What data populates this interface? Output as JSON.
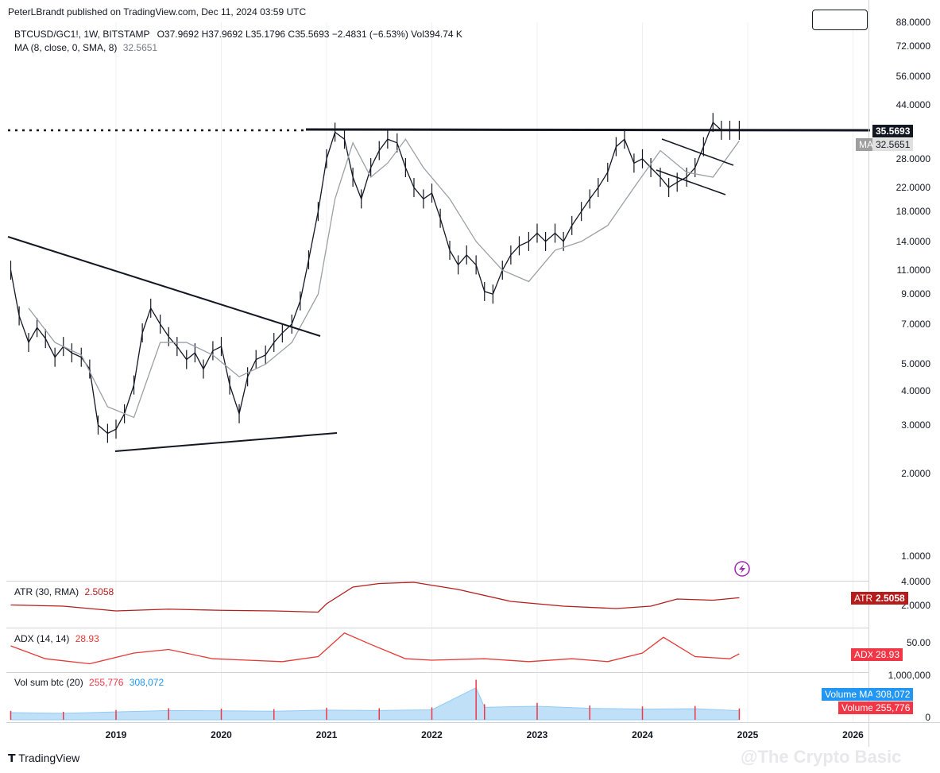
{
  "header": {
    "publisher": "PeterLBrandt published on TradingView.com, Dec 11, 2024 03:59 UTC",
    "symbol_line": {
      "symbol": "BTCUSD/GC1!, 1W, BITSTAMP",
      "ohlc": "O37.9692  H37.9692  L35.1796  C35.5693  −2.4831 (−6.53%)  Vol394.74 K"
    },
    "ma_line": {
      "label": "MA (8, close, 0, SMA, 8)",
      "value": "32.5651"
    }
  },
  "footer": {
    "brand": "TradingView",
    "watermark": "@The Crypto Basic"
  },
  "colors": {
    "candle": "#131722",
    "ma": "#9aa0a6",
    "atr": "#b71c1c",
    "adx": "#e53935",
    "vol_ma": "#2196f3",
    "vol": "#f23645"
  },
  "chart_data": [
    {
      "type": "line",
      "title": "BTCUSD/GC1!, 1W, BITSTAMP",
      "scale": "log",
      "y_ticks": [
        "88.0000",
        "72.0000",
        "56.0000",
        "44.0000",
        "28.0000",
        "22.0000",
        "18.0000",
        "14.0000",
        "11.0000",
        "9.0000",
        "7.0000",
        "5.0000",
        "4.0000",
        "3.0000",
        "2.0000",
        "1.0000"
      ],
      "x_ticks": [
        "2019",
        "2020",
        "2021",
        "2022",
        "2023",
        "2024",
        "2025",
        "2026"
      ],
      "ylim": [
        0.9,
        95
      ],
      "series": [
        {
          "name": "BTCUSD/GC1!",
          "x": [
            2018.0,
            2018.08,
            2018.17,
            2018.25,
            2018.33,
            2018.42,
            2018.5,
            2018.58,
            2018.67,
            2018.75,
            2018.83,
            2018.92,
            2019.0,
            2019.08,
            2019.17,
            2019.25,
            2019.33,
            2019.42,
            2019.5,
            2019.58,
            2019.67,
            2019.75,
            2019.83,
            2019.92,
            2020.0,
            2020.08,
            2020.17,
            2020.25,
            2020.33,
            2020.42,
            2020.5,
            2020.58,
            2020.67,
            2020.75,
            2020.83,
            2020.92,
            2021.0,
            2021.08,
            2021.17,
            2021.25,
            2021.33,
            2021.42,
            2021.5,
            2021.58,
            2021.67,
            2021.75,
            2021.83,
            2021.92,
            2022.0,
            2022.08,
            2022.17,
            2022.25,
            2022.33,
            2022.42,
            2022.5,
            2022.58,
            2022.67,
            2022.75,
            2022.83,
            2022.92,
            2023.0,
            2023.08,
            2023.17,
            2023.25,
            2023.33,
            2023.42,
            2023.5,
            2023.58,
            2023.67,
            2023.75,
            2023.83,
            2023.92,
            2024.0,
            2024.08,
            2024.17,
            2024.25,
            2024.33,
            2024.42,
            2024.5,
            2024.58,
            2024.67,
            2024.75,
            2024.83,
            2024.92
          ],
          "y": [
            11.0,
            7.5,
            6.0,
            6.8,
            6.2,
            5.3,
            5.8,
            5.5,
            5.3,
            4.8,
            3.0,
            2.8,
            2.9,
            3.3,
            4.2,
            6.5,
            8.0,
            7.0,
            6.3,
            5.8,
            5.2,
            5.5,
            4.8,
            5.6,
            5.8,
            4.2,
            3.3,
            4.5,
            5.2,
            5.4,
            6.0,
            6.5,
            7.0,
            8.5,
            12.0,
            18.0,
            28.0,
            35.0,
            33.0,
            24.0,
            20.0,
            26.0,
            30.0,
            33.0,
            32.0,
            26.0,
            22.0,
            20.0,
            21.0,
            17.0,
            13.0,
            11.5,
            12.5,
            11.5,
            9.2,
            9.0,
            11.0,
            12.5,
            13.5,
            14.0,
            15.0,
            14.0,
            15.0,
            14.0,
            16.0,
            18.0,
            20.0,
            22.0,
            25.0,
            31.0,
            33.0,
            27.0,
            28.0,
            26.0,
            24.0,
            22.0,
            23.0,
            24.0,
            26.0,
            31.0,
            37.97,
            35.57,
            35.57,
            35.57
          ]
        },
        {
          "name": "MA",
          "x": [
            2018.17,
            2018.42,
            2018.67,
            2018.92,
            2019.17,
            2019.42,
            2019.67,
            2019.92,
            2020.17,
            2020.42,
            2020.67,
            2020.92,
            2021.08,
            2021.25,
            2021.42,
            2021.58,
            2021.75,
            2021.92,
            2022.17,
            2022.42,
            2022.67,
            2022.92,
            2023.17,
            2023.42,
            2023.67,
            2023.92,
            2024.17,
            2024.42,
            2024.67,
            2024.92
          ],
          "y": [
            8.0,
            6.0,
            5.4,
            3.5,
            3.2,
            6.0,
            6.0,
            5.4,
            4.5,
            5.0,
            6.0,
            9.0,
            20.0,
            32.0,
            24.0,
            27.0,
            33.0,
            26.0,
            20.0,
            14.0,
            11.0,
            10.0,
            13.0,
            14.0,
            16.0,
            22.0,
            30.0,
            25.0,
            24.0,
            32.5651
          ]
        }
      ],
      "labels": {
        "last_price": "35.5693",
        "ma_tag": "MA",
        "ma_value": "32.5651"
      }
    },
    {
      "type": "line",
      "title": "ATR (30, RMA)",
      "y_ticks": [
        "4.0000",
        "2.0000"
      ],
      "series": [
        {
          "name": "ATR",
          "x": [
            2018.0,
            2018.5,
            2019.0,
            2019.5,
            2020.0,
            2020.5,
            2020.92,
            2021.0,
            2021.25,
            2021.5,
            2021.83,
            2022.25,
            2022.75,
            2023.25,
            2023.75,
            2024.08,
            2024.33,
            2024.67,
            2024.92
          ],
          "y": [
            1.9,
            1.8,
            1.4,
            1.55,
            1.45,
            1.4,
            1.3,
            2.0,
            3.4,
            3.7,
            3.8,
            3.2,
            2.2,
            1.8,
            1.6,
            1.8,
            2.4,
            2.3,
            2.5058
          ]
        }
      ],
      "labels": {
        "tag": "ATR",
        "value": "2.5058"
      }
    },
    {
      "type": "line",
      "title": "ADX (14, 14)",
      "y_ticks": [
        "50.00"
      ],
      "series": [
        {
          "name": "ADX",
          "x": [
            2018.0,
            2018.33,
            2018.75,
            2019.17,
            2019.5,
            2019.92,
            2020.25,
            2020.58,
            2020.92,
            2021.17,
            2021.42,
            2021.75,
            2022.0,
            2022.5,
            2022.92,
            2023.33,
            2023.67,
            2024.0,
            2024.2,
            2024.5,
            2024.83,
            2024.92
          ],
          "y": [
            40,
            22,
            15,
            30,
            35,
            22,
            20,
            18,
            25,
            58,
            42,
            22,
            20,
            22,
            18,
            22,
            18,
            30,
            52,
            25,
            22,
            28.93
          ]
        }
      ],
      "labels": {
        "tag": "ADX",
        "value": "28.93"
      }
    },
    {
      "type": "bar",
      "title": "Vol sum btc (20)",
      "title_values": {
        "vol": "255,776",
        "vol_ma": "308,072"
      },
      "y_ticks": [
        "1,000,000",
        "0"
      ],
      "labels": {
        "vol_ma_tag": "Volume MA",
        "vol_ma_value": "308,072",
        "vol_tag": "Volume",
        "vol_value": "255,776"
      },
      "series": [
        {
          "name": "Volume",
          "x": [
            2018.0,
            2018.5,
            2019.0,
            2019.5,
            2020.0,
            2020.5,
            2021.0,
            2021.5,
            2022.0,
            2022.42,
            2022.5,
            2023.0,
            2023.5,
            2024.0,
            2024.5,
            2024.92
          ],
          "y": [
            200000,
            180000,
            220000,
            260000,
            250000,
            240000,
            270000,
            260000,
            280000,
            900000,
            350000,
            380000,
            320000,
            300000,
            310000,
            255776
          ]
        }
      ]
    }
  ]
}
